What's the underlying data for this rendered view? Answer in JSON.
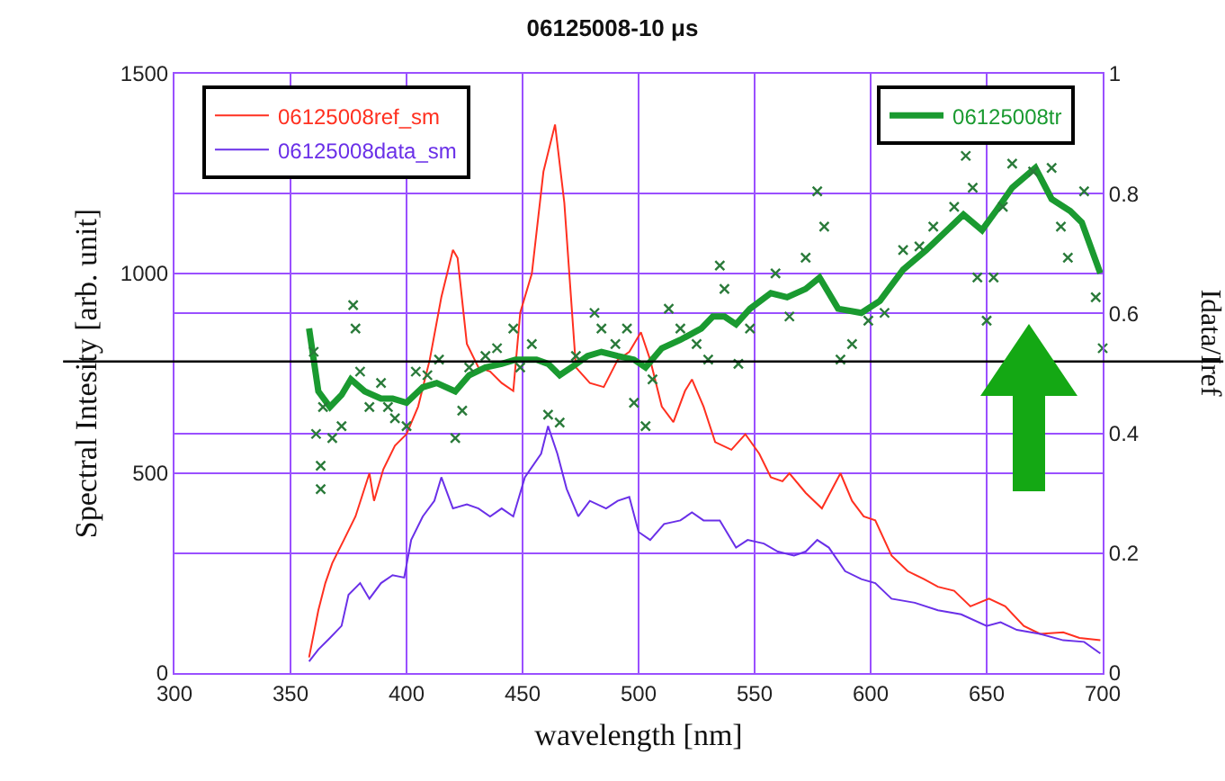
{
  "chart_data": {
    "type": "line",
    "title": "06125008-10 μs",
    "xlabel": "wavelength [nm]",
    "ylabel": "Spectral Intesity [arb. unit]",
    "y2label": "Idata/Iref",
    "xlim": [
      300,
      700
    ],
    "xticks": [
      300,
      350,
      400,
      450,
      500,
      550,
      600,
      650,
      700
    ],
    "ylim": [
      0,
      1500
    ],
    "yticks": [
      0,
      500,
      1000,
      1500
    ],
    "y2lim": [
      0,
      1
    ],
    "y2ticks": [
      0,
      0.2,
      0.4,
      0.6,
      0.8,
      1
    ],
    "grid": true,
    "legend": "top",
    "line_style": "solid",
    "ref_lines": [
      {
        "axis": "y2",
        "value": 0.52,
        "color": "#000000"
      }
    ],
    "series": [
      {
        "name": "06125008ref_sm",
        "color": "#ff3020",
        "x": [
          358,
          362,
          365,
          368,
          373,
          378,
          384,
          386,
          390,
          395,
          400,
          405,
          410,
          415,
          420,
          422,
          426,
          431,
          436,
          441,
          446,
          449,
          454,
          459,
          464,
          468,
          473,
          479,
          485,
          491,
          496,
          501,
          505,
          510,
          515,
          520,
          523,
          528,
          533,
          540,
          546,
          552,
          557,
          562,
          565,
          572,
          579,
          587,
          592,
          597,
          602,
          609,
          616,
          623,
          629,
          636,
          643,
          651,
          658,
          666,
          673,
          683,
          690,
          699
        ],
        "values": [
          39,
          157,
          225,
          275,
          333,
          392,
          500,
          431,
          510,
          569,
          598,
          667,
          784,
          941,
          1059,
          1039,
          824,
          765,
          755,
          726,
          706,
          902,
          1000,
          1255,
          1373,
          1177,
          765,
          726,
          716,
          784,
          804,
          853,
          784,
          667,
          628,
          706,
          735,
          667,
          578,
          559,
          598,
          549,
          490,
          480,
          500,
          451,
          412,
          500,
          431,
          392,
          382,
          294,
          255,
          235,
          216,
          206,
          167,
          186,
          167,
          118,
          98,
          102,
          88,
          82
        ]
      },
      {
        "name": "06125008data_sm",
        "color": "#6a30e8",
        "x": [
          358,
          362,
          367,
          372,
          375,
          380,
          384,
          389,
          394,
          399,
          402,
          407,
          412,
          415,
          420,
          426,
          431,
          436,
          441,
          446,
          451,
          458,
          461,
          465,
          469,
          474,
          479,
          486,
          491,
          496,
          500,
          505,
          511,
          518,
          523,
          528,
          535,
          542,
          547,
          554,
          560,
          567,
          572,
          577,
          582,
          589,
          596,
          602,
          609,
          619,
          629,
          639,
          650,
          656,
          663,
          673,
          683,
          692,
          699
        ],
        "values": [
          29,
          59,
          88,
          118,
          196,
          225,
          186,
          225,
          245,
          239,
          333,
          392,
          431,
          490,
          412,
          422,
          412,
          392,
          412,
          392,
          490,
          549,
          618,
          549,
          461,
          392,
          431,
          412,
          431,
          441,
          353,
          333,
          373,
          382,
          402,
          382,
          382,
          314,
          333,
          324,
          304,
          294,
          304,
          333,
          314,
          255,
          235,
          225,
          186,
          176,
          157,
          147,
          118,
          127,
          108,
          98,
          82,
          78,
          49
        ]
      },
      {
        "name": "06125008tr",
        "color": "#1a9a30",
        "axis": "y2",
        "x": [
          358,
          362,
          367,
          372,
          376,
          382,
          389,
          394,
          400,
          407,
          413,
          421,
          427,
          434,
          441,
          447,
          456,
          461,
          466,
          471,
          478,
          484,
          491,
          498,
          503,
          510,
          518,
          527,
          532,
          537,
          542,
          548,
          557,
          564,
          572,
          578,
          586,
          596,
          604,
          614,
          624,
          633,
          640,
          648,
          654,
          661,
          671,
          678,
          686,
          691,
          699
        ],
        "values": [
          0.575,
          0.47,
          0.444,
          0.464,
          0.49,
          0.47,
          0.458,
          0.458,
          0.451,
          0.477,
          0.484,
          0.47,
          0.497,
          0.51,
          0.516,
          0.523,
          0.523,
          0.516,
          0.497,
          0.51,
          0.529,
          0.536,
          0.529,
          0.523,
          0.51,
          0.542,
          0.556,
          0.575,
          0.595,
          0.595,
          0.582,
          0.608,
          0.634,
          0.627,
          0.641,
          0.66,
          0.608,
          0.601,
          0.621,
          0.673,
          0.706,
          0.739,
          0.765,
          0.739,
          0.771,
          0.81,
          0.843,
          0.791,
          0.771,
          0.752,
          0.667
        ]
      },
      {
        "type": "scatter",
        "marker": "cross",
        "color": "#2a7a3a",
        "axis": "y2",
        "x": [
          360,
          361,
          363,
          363,
          364,
          368,
          372,
          377,
          378,
          380,
          384,
          389,
          392,
          395,
          400,
          404,
          409,
          414,
          421,
          424,
          427,
          434,
          439,
          446,
          449,
          454,
          461,
          466,
          473,
          481,
          484,
          490,
          495,
          498,
          503,
          506,
          513,
          518,
          525,
          530,
          535,
          537,
          543,
          548,
          559,
          565,
          572,
          577,
          580,
          587,
          592,
          599,
          606,
          614,
          621,
          627,
          636,
          641,
          644,
          646,
          650,
          653,
          657,
          661,
          670,
          678,
          682,
          685,
          692,
          697,
          700
        ],
        "values": [
          0.536,
          0.399,
          0.346,
          0.307,
          0.444,
          0.392,
          0.412,
          0.614,
          0.575,
          0.503,
          0.444,
          0.484,
          0.444,
          0.425,
          0.412,
          0.503,
          0.497,
          0.523,
          0.392,
          0.438,
          0.51,
          0.529,
          0.542,
          0.575,
          0.51,
          0.549,
          0.431,
          0.418,
          0.529,
          0.601,
          0.575,
          0.549,
          0.575,
          0.451,
          0.412,
          0.49,
          0.608,
          0.575,
          0.549,
          0.523,
          0.68,
          0.641,
          0.516,
          0.575,
          0.667,
          0.595,
          0.693,
          0.804,
          0.745,
          0.523,
          0.549,
          0.588,
          0.601,
          0.706,
          0.712,
          0.745,
          0.778,
          0.863,
          0.81,
          0.66,
          0.588,
          0.66,
          0.778,
          0.85,
          0.837,
          0.843,
          0.745,
          0.693,
          0.804,
          0.627,
          0.542
        ]
      }
    ]
  }
}
